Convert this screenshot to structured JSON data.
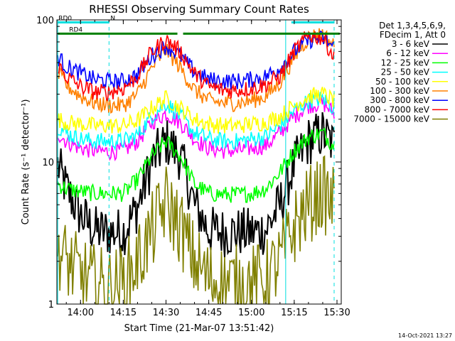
{
  "chart_data": {
    "type": "line",
    "title": "RHESSI Observing Summary Count Rates",
    "xlabel": "Start Time (21-Mar-07 13:51:42)",
    "ylabel": "Count Rate (s⁻¹ detector⁻¹)",
    "y_scale": "log",
    "ylim": [
      1,
      100
    ],
    "xlim": [
      "13:51:42",
      "15:31:30"
    ],
    "x_ticks": [
      "14:00",
      "14:15",
      "14:30",
      "14:45",
      "15:00",
      "15:15",
      "15:30"
    ],
    "y_ticks": [
      "1",
      "10",
      "100"
    ],
    "legend_header": [
      "Det 1,3,4,5,6,9,",
      "FDecim 1, Att 0"
    ],
    "legend_placement": "right",
    "timestamp": "14-Oct-2021 13:27",
    "state_bars": [
      {
        "label": "RD0",
        "color": "#00e0e0",
        "segments": [
          [
            "13:52",
            "14:10"
          ],
          [
            "15:14",
            "15:29"
          ]
        ],
        "level": 96
      },
      {
        "label": "N",
        "color": "#00e0e0",
        "segments": [],
        "level": 96
      },
      {
        "label": "RD4",
        "color": "#008000",
        "segments": [
          [
            "13:52",
            "14:34"
          ],
          [
            "14:36",
            "15:31"
          ]
        ],
        "level": 80
      }
    ],
    "night_markers": [
      {
        "time": "13:52",
        "color": "#00e0e0",
        "style": "solid"
      },
      {
        "time": "14:10",
        "color": "#00e0e0",
        "style": "dashed"
      },
      {
        "time": "15:12",
        "color": "#00e0e0",
        "style": "solid"
      },
      {
        "time": "15:29",
        "color": "#00e0e0",
        "style": "dashed"
      }
    ],
    "time_points": [
      "13:52",
      "13:55",
      "14:00",
      "14:05",
      "14:10",
      "14:15",
      "14:20",
      "14:25",
      "14:30",
      "14:35",
      "14:40",
      "14:45",
      "14:50",
      "14:55",
      "15:00",
      "15:05",
      "15:10",
      "15:15",
      "15:20",
      "15:25",
      "15:29"
    ],
    "series": [
      {
        "name": "3 - 6 keV",
        "color": "#000000",
        "values": [
          9.5,
          6.5,
          4.2,
          3.3,
          3.2,
          3.2,
          4.8,
          10,
          14,
          11,
          5.0,
          3.3,
          3.2,
          3.2,
          3.2,
          3.3,
          5.0,
          9.5,
          14,
          16,
          13
        ]
      },
      {
        "name": "6 - 12 keV",
        "color": "#ff00ff",
        "values": [
          16,
          14,
          12.5,
          12,
          11.8,
          12,
          14,
          19,
          22,
          19,
          14.5,
          12.5,
          12,
          12,
          12.5,
          13,
          16,
          21,
          25,
          26,
          22
        ]
      },
      {
        "name": "12 - 25 keV",
        "color": "#00ff00",
        "values": [
          7,
          6.5,
          6.2,
          6,
          6,
          6,
          7.5,
          11,
          14,
          11,
          7,
          6,
          5.9,
          5.9,
          6,
          6.5,
          8.5,
          12,
          15,
          16,
          13
        ]
      },
      {
        "name": "25 - 50 keV",
        "color": "#00ffff",
        "values": [
          18,
          16,
          14.5,
          14,
          14,
          14,
          15.5,
          21,
          26,
          21,
          16,
          14.5,
          14,
          14,
          14.5,
          15,
          18,
          23,
          27,
          28,
          24
        ]
      },
      {
        "name": "50 - 100 keV",
        "color": "#ffff00",
        "values": [
          20,
          19,
          18.5,
          18,
          18,
          18,
          19.5,
          24,
          28,
          24,
          20,
          18.5,
          18,
          18,
          18.5,
          19,
          21,
          25,
          29,
          30,
          27
        ]
      },
      {
        "name": "100 - 300 keV",
        "color": "#ff8000",
        "values": [
          42,
          35,
          29,
          26,
          25,
          25,
          30,
          46,
          62,
          46,
          32,
          27,
          26,
          26,
          27,
          29,
          36,
          55,
          75,
          80,
          65
        ]
      },
      {
        "name": "300 - 800 keV",
        "color": "#0000ff",
        "values": [
          55,
          47,
          42,
          38,
          37,
          37,
          41,
          56,
          66,
          56,
          43,
          38,
          37,
          37,
          38,
          40,
          46,
          60,
          72,
          74,
          64
        ]
      },
      {
        "name": "800 - 7000 keV",
        "color": "#ff0000",
        "values": [
          48,
          40,
          34,
          31,
          31,
          33,
          40,
          60,
          72,
          60,
          42,
          34,
          32,
          32,
          33,
          35,
          40,
          60,
          78,
          75,
          55
        ]
      },
      {
        "name": "7000 - 15000 keV",
        "color": "#808000",
        "values": [
          2.5,
          2.0,
          1.6,
          1.4,
          1.3,
          1.4,
          2.0,
          3.2,
          5.2,
          3.5,
          2.0,
          1.5,
          1.4,
          1.4,
          1.4,
          1.5,
          2.0,
          3.5,
          5.0,
          6.0,
          5.0
        ]
      }
    ]
  }
}
